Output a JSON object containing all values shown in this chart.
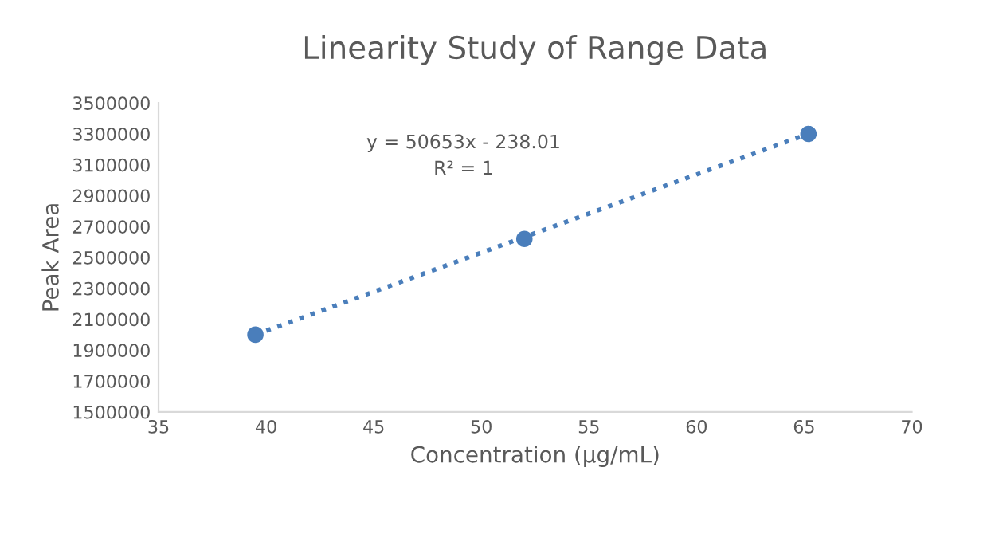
{
  "chart_data": {
    "type": "scatter",
    "title": "Linearity Study of Range Data",
    "xlabel": "Concentration (µg/mL)",
    "ylabel": "Peak Area",
    "x": [
      39.5,
      52,
      65.2
    ],
    "series": [
      {
        "color": "#4a7ebb",
        "values": [
          2000000,
          2620000,
          3300000
        ],
        "marker": "circle"
      },
      {
        "type": "line",
        "color": "#4a7ebb",
        "x": [
          39.5,
          65.2
        ],
        "values": [
          2000000,
          3300000
        ],
        "line_style": "dotted"
      }
    ],
    "annotations": [
      "y = 50653x - 238.01",
      "R² = 1"
    ],
    "xlim": [
      35,
      70
    ],
    "xticks": [
      35,
      40,
      45,
      50,
      55,
      60,
      65,
      70
    ],
    "ylim": [
      1500000,
      3500000
    ],
    "yticks": [
      1500000,
      1700000,
      1900000,
      2100000,
      2300000,
      2500000,
      2700000,
      2900000,
      3100000,
      3300000,
      3500000
    ],
    "grid": false,
    "legend": false
  }
}
